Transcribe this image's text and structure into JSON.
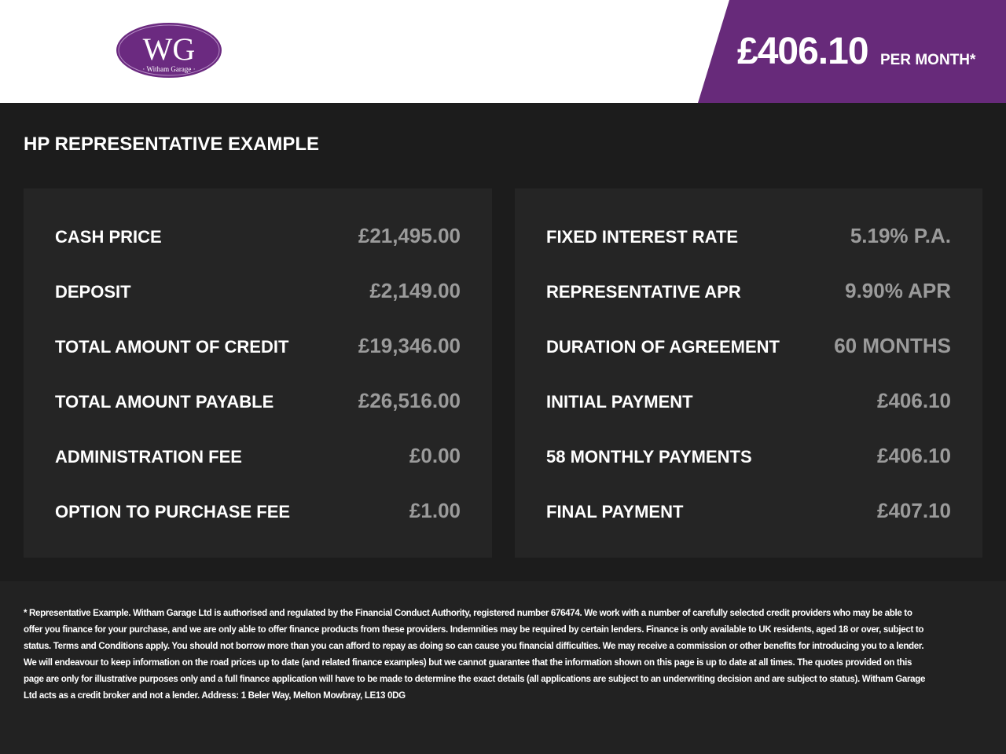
{
  "header": {
    "logo_text": "WG",
    "logo_subtitle": "· Witham Garage ·",
    "price": "£406.10",
    "price_suffix": "PER MONTH*"
  },
  "section": {
    "title": "HP REPRESENTATIVE EXAMPLE",
    "left_rows": [
      {
        "label": "CASH PRICE",
        "value": "£21,495.00"
      },
      {
        "label": "DEPOSIT",
        "value": "£2,149.00"
      },
      {
        "label": "TOTAL AMOUNT OF CREDIT",
        "value": "£19,346.00"
      },
      {
        "label": "TOTAL AMOUNT PAYABLE",
        "value": "£26,516.00"
      },
      {
        "label": "ADMINISTRATION FEE",
        "value": "£0.00"
      },
      {
        "label": "OPTION TO PURCHASE FEE",
        "value": "£1.00"
      }
    ],
    "right_rows": [
      {
        "label": "FIXED INTEREST RATE",
        "value": "5.19% P.A."
      },
      {
        "label": "REPRESENTATIVE APR",
        "value": "9.90% APR"
      },
      {
        "label": "DURATION OF AGREEMENT",
        "value": "60 MONTHS"
      },
      {
        "label": "INITIAL PAYMENT",
        "value": "£406.10"
      },
      {
        "label": "58 MONTHLY PAYMENTS",
        "value": "£406.10"
      },
      {
        "label": "FINAL PAYMENT",
        "value": "£407.10"
      }
    ]
  },
  "footer": {
    "disclaimer": "* Representative Example. Witham Garage Ltd is authorised and regulated by the Financial Conduct Authority, registered number 676474. We work with a number of carefully selected credit providers who may be able to offer you finance for your purchase, and we are only able to offer finance products from these providers. Indemnities may be required by certain lenders. Finance is only available to UK residents, aged 18 or over, subject to status. Terms and Conditions apply. You should not borrow more than you can afford to repay as doing so can cause you financial difficulties. We may receive a commission or other benefits for introducing you to a lender. We will endeavour to keep information on the road prices up to date (and related finance examples) but we cannot guarantee that the information shown on this page is up to date at all times. The quotes provided on this page are only for illustrative purposes only and a full finance application will have to be made to determine the exact details (all applications are subject to an underwriting decision and are subject to status). Witham Garage Ltd acts as a credit broker and not a lender. Address: 1 Beler Way, Melton Mowbray, LE13 0DG"
  }
}
